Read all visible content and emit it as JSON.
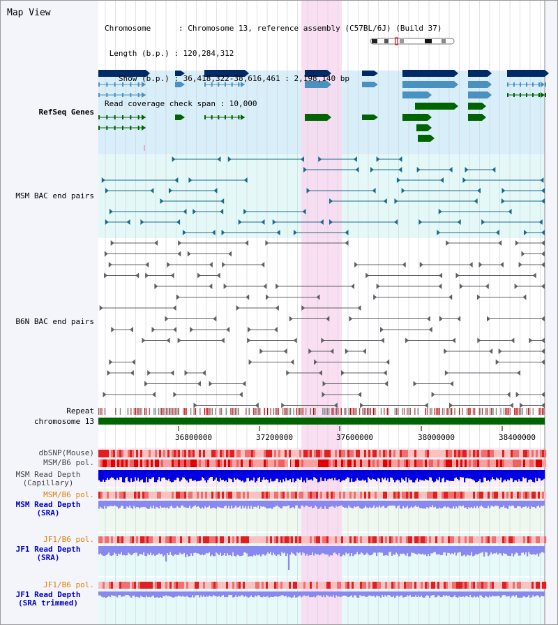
{
  "page": {
    "title": "Map View"
  },
  "info": {
    "lines": [
      "Chromosome      : Chromosome 13, reference assembly (C57BL/6J) (Build 37)",
      " Length (b.p.) : 120,284,312",
      "   Show (b.p.) : 36,418,322-38,616,461 : 2,198,140 bp",
      "Read coverage check span : 10,000"
    ]
  },
  "tracks": {
    "refseq": {
      "label": "RefSeq Genes",
      "color": "#0000cc"
    },
    "msm_bac": {
      "label": "MSM BAC end pairs",
      "color": "#006080"
    },
    "b6n_bac": {
      "label": "B6N BAC end pairs",
      "color": "#404040"
    },
    "repeat": {
      "label": "Repeat"
    },
    "chrom": {
      "label": "chromosome 13"
    },
    "dbsnp": {
      "label": "dbSNP(Mouse)"
    },
    "msm_b6_pol": {
      "label": "MSM/B6 pol."
    },
    "msm_depth_cap": {
      "label": "MSM Read Depth\n(Capillary)"
    },
    "msm_b6_pol_sra": {
      "label": "MSM/B6 pol."
    },
    "msm_depth_sra": {
      "label": "MSM Read Depth\n(SRA)"
    },
    "jf1_b6_pol": {
      "label": "JF1/B6 pol."
    },
    "jf1_depth_sra": {
      "label": "JF1 Read Depth\n(SRA)"
    },
    "jf1_b6_pol_trim": {
      "label": "JF1/B6 pol."
    },
    "jf1_depth_trim": {
      "label": "JF1 Read Depth\n(SRA trimmed)"
    }
  },
  "axis": {
    "ticks": [
      "36800000",
      "37200000",
      "37600000",
      "38000000",
      "38400000"
    ]
  },
  "colors": {
    "gene_dark": "#002a66",
    "gene_mid": "#4a90c0",
    "gene_green": "#006400",
    "highlight": "#f9d8f0",
    "refseq_bg": "#d8eef8",
    "msm_bg": "#e4f8f8",
    "chrom": "#006400",
    "repeat_red": "#cc0000",
    "depth_blue": "#0000e0",
    "depth_light": "#8888f0"
  }
}
